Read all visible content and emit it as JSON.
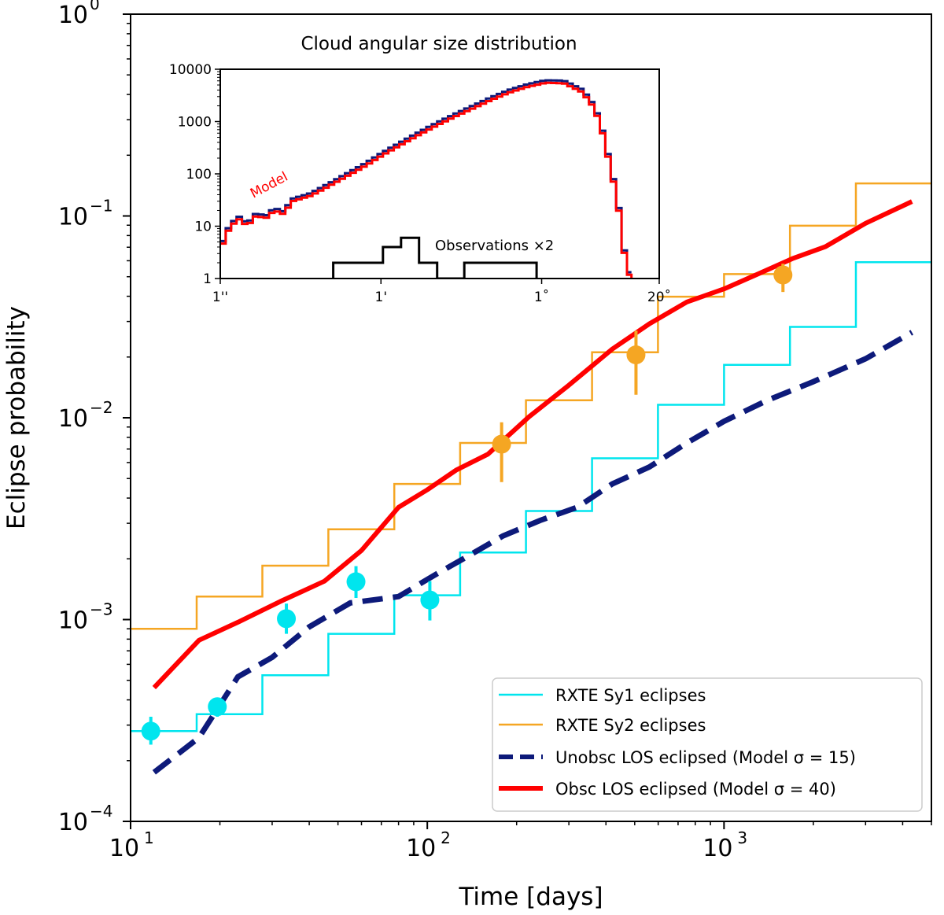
{
  "chart_data": {
    "type": "line",
    "xscale": "log",
    "yscale": "log",
    "xlim": [
      10,
      5000
    ],
    "ylim": [
      0.0001,
      1
    ],
    "xlabel": "Time [days]",
    "ylabel": "Eclipse probability",
    "x_ticks": [
      {
        "value": 10,
        "base": "10",
        "exp": "1"
      },
      {
        "value": 100,
        "base": "10",
        "exp": "2"
      },
      {
        "value": 1000,
        "base": "10",
        "exp": "3"
      }
    ],
    "y_ticks": [
      {
        "value": 0.0001,
        "base": "10",
        "exp": "−4"
      },
      {
        "value": 0.001,
        "base": "10",
        "exp": "−3"
      },
      {
        "value": 0.01,
        "base": "10",
        "exp": "−2"
      },
      {
        "value": 0.1,
        "base": "10",
        "exp": "−1"
      },
      {
        "value": 1,
        "base": "10",
        "exp": "0"
      }
    ],
    "legend": {
      "placement": "lower-right",
      "entries": [
        {
          "label": "RXTE Sy1 eclipses",
          "color": "#00e5ee",
          "style": "solid-thin"
        },
        {
          "label": "RXTE Sy2 eclipses",
          "color": "#f5a623",
          "style": "solid-thin"
        },
        {
          "label": "Unobsc LOS eclipsed (Model σ = 15)",
          "color": "#0d1a7a",
          "style": "dashed-thick"
        },
        {
          "label": "Obsc LOS eclipsed (Model σ = 40)",
          "color": "#ff0000",
          "style": "solid-thick"
        }
      ]
    },
    "series": [
      {
        "name": "RXTE Sy1 eclipses",
        "kind": "step",
        "color": "#00e5ee",
        "edges": [
          10,
          16.7,
          27.8,
          46.4,
          77.4,
          129,
          215,
          359,
          599,
          1000,
          1668,
          2782,
          4641,
          5000
        ],
        "values": [
          0.00028,
          0.00034,
          0.00053,
          0.00085,
          0.00132,
          0.00215,
          0.00345,
          0.0063,
          0.0116,
          0.0183,
          0.0282,
          0.059,
          0.059
        ]
      },
      {
        "name": "RXTE Sy2 eclipses",
        "kind": "step",
        "color": "#f5a623",
        "edges": [
          10,
          16.7,
          27.8,
          46.4,
          77.4,
          129,
          215,
          359,
          599,
          1000,
          1668,
          2782,
          4641,
          5000
        ],
        "values": [
          0.0009,
          0.0013,
          0.00185,
          0.0028,
          0.0047,
          0.0075,
          0.0122,
          0.0211,
          0.0398,
          0.0515,
          0.0895,
          0.145,
          0.145
        ]
      },
      {
        "name": "Unobsc LOS eclipsed (Model σ = 15)",
        "kind": "line",
        "color": "#0d1a7a",
        "x": [
          12,
          17,
          23,
          30,
          40,
          55,
          80,
          105,
          140,
          180,
          240,
          320,
          420,
          560,
          750,
          1000,
          1400,
          2000,
          3000,
          4300
        ],
        "y": [
          0.000175,
          0.00026,
          0.00052,
          0.00065,
          0.00092,
          0.00121,
          0.0013,
          0.00165,
          0.0021,
          0.0026,
          0.0031,
          0.0036,
          0.0047,
          0.0057,
          0.0075,
          0.0096,
          0.0122,
          0.0151,
          0.0196,
          0.0265
        ]
      },
      {
        "name": "Obsc LOS eclipsed (Model σ = 40)",
        "kind": "line",
        "color": "#ff0000",
        "x": [
          12,
          17,
          23,
          32,
          45,
          60,
          80,
          100,
          125,
          160,
          220,
          300,
          420,
          560,
          750,
          1000,
          1300,
          1700,
          2200,
          3000,
          4300
        ],
        "y": [
          0.00046,
          0.00079,
          0.00097,
          0.00123,
          0.00155,
          0.0022,
          0.0036,
          0.0044,
          0.0055,
          0.0066,
          0.0101,
          0.0145,
          0.0219,
          0.0292,
          0.0375,
          0.0435,
          0.0515,
          0.0615,
          0.0705,
          0.092,
          0.118
        ]
      },
      {
        "name": "Sy1 data points",
        "kind": "scatter",
        "color": "#00e5ee",
        "x": [
          11.7,
          19.6,
          33.5,
          57.5,
          102
        ],
        "y": [
          0.00028,
          0.00037,
          0.00101,
          0.00154,
          0.00125
        ],
        "yerr_low": [
          0.00024,
          0.00033,
          0.00085,
          0.00128,
          0.00099
        ],
        "yerr_high": [
          0.00033,
          0.00041,
          0.0012,
          0.00184,
          0.00155
        ]
      },
      {
        "name": "Sy2 data points",
        "kind": "scatter",
        "color": "#f5a623",
        "x": [
          178,
          505,
          1580
        ],
        "y": [
          0.0074,
          0.0205,
          0.051
        ],
        "yerr_low": [
          0.0048,
          0.013,
          0.042
        ],
        "yerr_high": [
          0.0095,
          0.027,
          0.058
        ]
      }
    ],
    "inset": {
      "title": "Cloud angular size distribution",
      "type": "histogram",
      "yscale": "log",
      "ylim": [
        1,
        10000
      ],
      "xlim_log10_arcsec": [
        0,
        4.857
      ],
      "x_ticks": [
        {
          "pos": 0,
          "label": "1''"
        },
        {
          "pos": 1.778,
          "label": "1'"
        },
        {
          "pos": 3.556,
          "label": "1˚"
        },
        {
          "pos": 4.857,
          "label": "20˚"
        }
      ],
      "y_ticks": [
        {
          "value": 1,
          "label": "1"
        },
        {
          "value": 10,
          "label": "10"
        },
        {
          "value": 100,
          "label": "100"
        },
        {
          "value": 1000,
          "label": "1000"
        },
        {
          "value": 10000,
          "label": "10000"
        }
      ],
      "model_label": "Model",
      "obs_label": "Observations ×2",
      "model_curve": {
        "color": "#ff0000",
        "shadow_color": "#0d1a7a",
        "x": [
          0,
          0.1,
          0.2,
          0.3,
          0.4,
          0.5,
          0.6,
          0.7,
          0.8,
          1.0,
          1.2,
          1.4,
          1.6,
          1.8,
          2.0,
          2.2,
          2.4,
          2.6,
          2.8,
          3.0,
          3.2,
          3.4,
          3.6,
          3.8,
          4.0,
          4.1,
          4.2,
          4.3,
          4.4,
          4.45,
          4.5,
          4.55
        ],
        "y": [
          3.5,
          9,
          14,
          10,
          16,
          14,
          20,
          17,
          30,
          38,
          58,
          90,
          140,
          230,
          360,
          560,
          850,
          1250,
          1800,
          2600,
          3600,
          4600,
          5500,
          5400,
          3700,
          2300,
          1000,
          180,
          28,
          5,
          1.5,
          1
        ]
      },
      "observations": {
        "color": "#000000",
        "edges": [
          1.25,
          1.6,
          1.8,
          2.0,
          2.2,
          2.4,
          2.7,
          2.9,
          3.1,
          3.3,
          3.5
        ],
        "values": [
          2,
          2,
          4,
          6,
          2,
          1,
          2,
          2,
          2,
          2
        ]
      }
    }
  }
}
